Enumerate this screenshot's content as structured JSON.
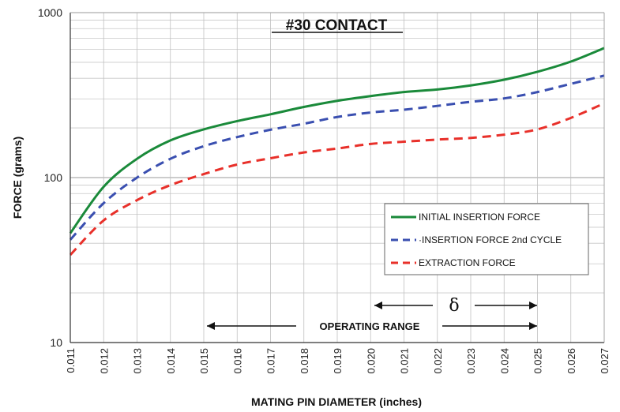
{
  "chart_data": {
    "type": "line",
    "title": "#30 CONTACT",
    "xlabel": "MATING PIN DIAMETER (inches)",
    "ylabel": "FORCE (grams)",
    "x_scale": "linear",
    "y_scale": "log",
    "xlim": [
      0.011,
      0.027
    ],
    "ylim": [
      10,
      1000
    ],
    "x_ticks": [
      "0.011",
      "0.012",
      "0.013",
      "0.014",
      "0.015",
      "0.016",
      "0.017",
      "0.018",
      "0.019",
      "0.020",
      "0.021",
      "0.022",
      "0.023",
      "0.024",
      "0.025",
      "0.026",
      "0.027"
    ],
    "y_ticks": [
      "10",
      "100",
      "1000"
    ],
    "grid": true,
    "legend_position": "center-right",
    "x": [
      0.011,
      0.012,
      0.013,
      0.014,
      0.015,
      0.016,
      0.017,
      0.018,
      0.019,
      0.02,
      0.021,
      0.022,
      0.023,
      0.024,
      0.025,
      0.026,
      0.027
    ],
    "series": [
      {
        "name": "INITIAL INSERTION FORCE",
        "color": "#1a8a3a",
        "style": "solid",
        "values": [
          46,
          88,
          130,
          168,
          196,
          220,
          242,
          268,
          292,
          312,
          330,
          342,
          362,
          392,
          438,
          505,
          610
        ]
      },
      {
        "name": "INSERTION FORCE 2nd CYCLE",
        "color": "#3a4fb0",
        "style": "dashed",
        "values": [
          42,
          70,
          100,
          130,
          155,
          176,
          195,
          212,
          233,
          248,
          258,
          272,
          288,
          302,
          330,
          370,
          415
        ]
      },
      {
        "name": "EXTRACTION FORCE",
        "color": "#e8302a",
        "style": "dashed",
        "values": [
          34,
          55,
          73,
          90,
          105,
          120,
          131,
          142,
          150,
          160,
          165,
          170,
          174,
          182,
          196,
          230,
          282
        ]
      }
    ],
    "annotations": [
      {
        "text": "OPERATING RANGE",
        "x_from": 0.015,
        "x_to": 0.025
      },
      {
        "text": "δ",
        "x_from": 0.02,
        "x_to": 0.025
      }
    ]
  }
}
